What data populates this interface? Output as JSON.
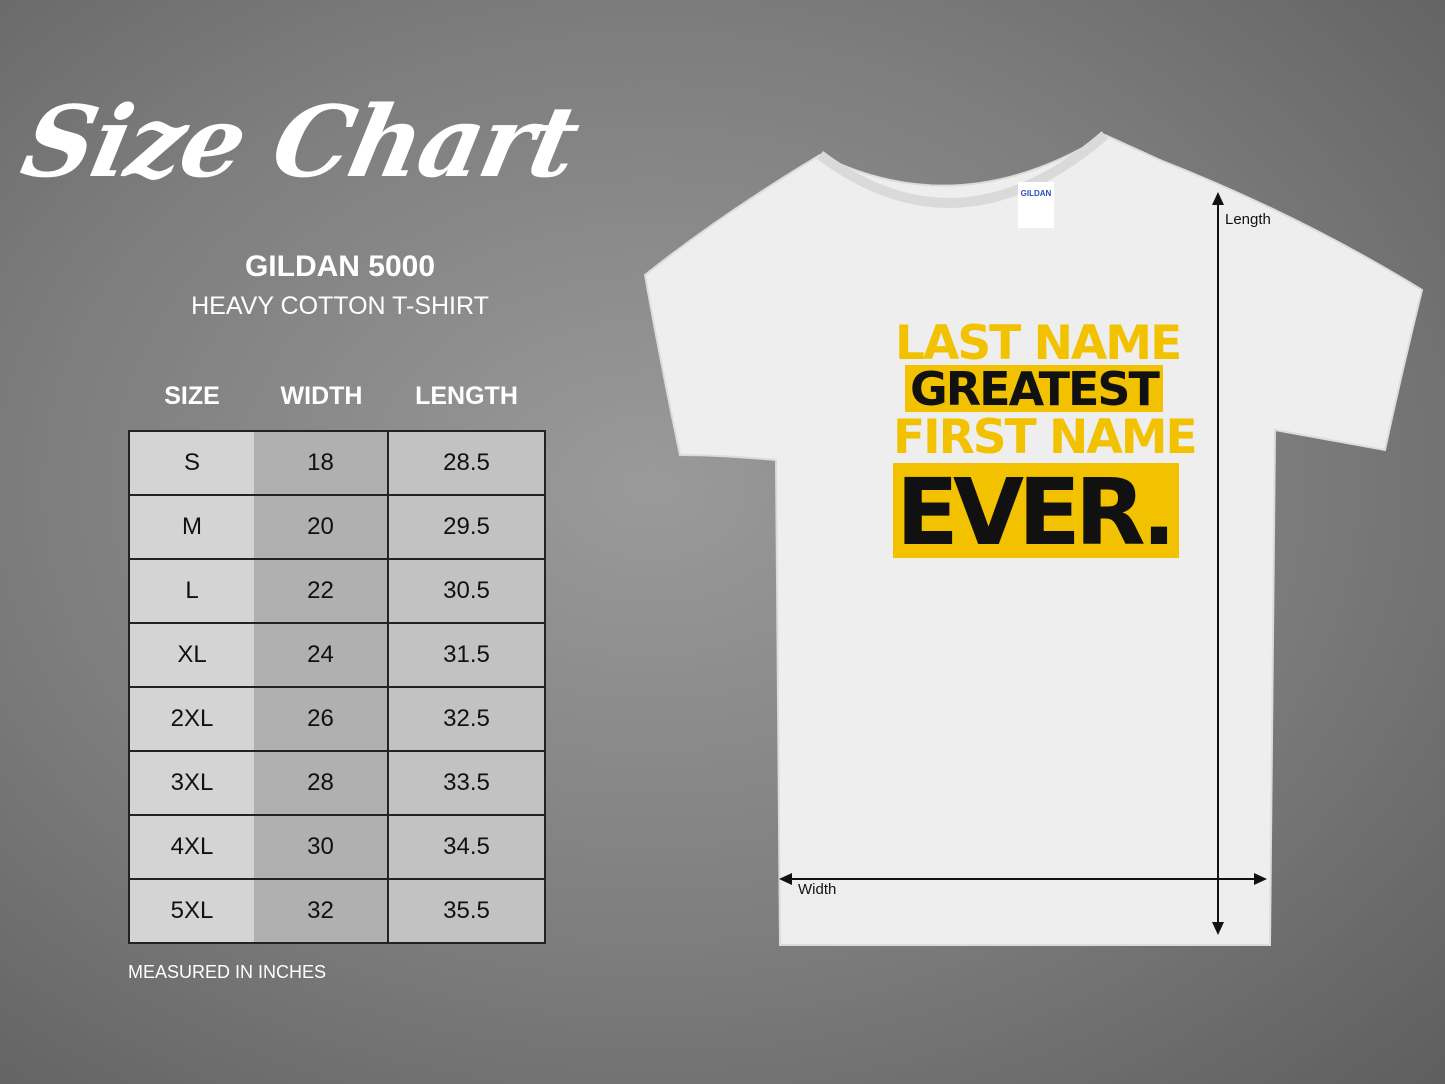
{
  "title": "Size Chart",
  "brand": "GILDAN 5000",
  "subtitle": "HEAVY COTTON T-SHIRT",
  "table": {
    "headers": [
      "SIZE",
      "WIDTH",
      "LENGTH"
    ],
    "rows": [
      [
        "S",
        "18",
        "28.5"
      ],
      [
        "M",
        "20",
        "29.5"
      ],
      [
        "L",
        "22",
        "30.5"
      ],
      [
        "XL",
        "24",
        "31.5"
      ],
      [
        "2XL",
        "26",
        "32.5"
      ],
      [
        "3XL",
        "28",
        "33.5"
      ],
      [
        "4XL",
        "30",
        "34.5"
      ],
      [
        "5XL",
        "32",
        "35.5"
      ]
    ]
  },
  "note": "MEASURED IN INCHES",
  "shirt": {
    "tag": "GILDAN",
    "print": [
      "LAST NAME",
      "GREATEST",
      "FIRST NAME",
      "EVER."
    ],
    "length_label": "Length",
    "width_label": "Width",
    "colors": {
      "yellow": "#f2c200",
      "black": "#111111",
      "shirt": "#efefef"
    }
  }
}
